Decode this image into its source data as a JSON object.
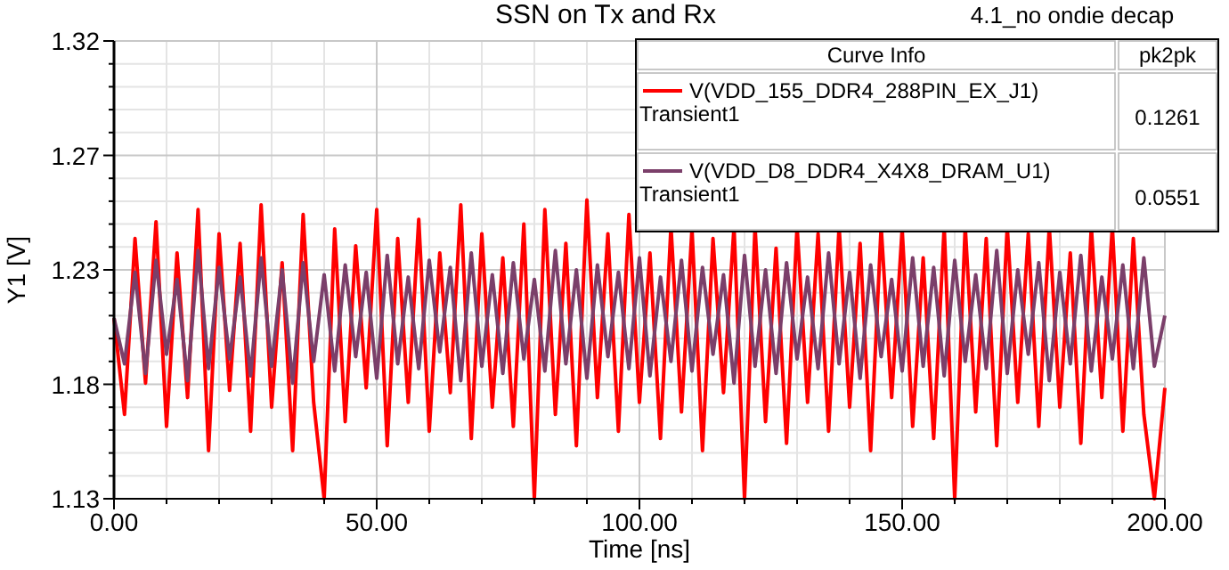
{
  "chart_data": {
    "type": "line",
    "title": "SSN on Tx and Rx",
    "xlabel": "Time [ns]",
    "ylabel": "Y1 [V]",
    "annotations": [
      "4.1_no ondie decap",
      "Curve Info",
      "pk2pk",
      "0.1261",
      "0.0551"
    ],
    "x": [
      0,
      2,
      4,
      6,
      8,
      10,
      12,
      14,
      16,
      18,
      20,
      22,
      24,
      26,
      28,
      30,
      32,
      34,
      36,
      38,
      40,
      42,
      44,
      46,
      48,
      50,
      52,
      54,
      56,
      58,
      60,
      62,
      64,
      66,
      68,
      70,
      72,
      74,
      76,
      78,
      80,
      82,
      84,
      86,
      88,
      90,
      92,
      94,
      96,
      98,
      100,
      102,
      104,
      106,
      108,
      110,
      112,
      114,
      116,
      118,
      120,
      122,
      124,
      126,
      128,
      130,
      132,
      134,
      136,
      138,
      140,
      142,
      144,
      146,
      148,
      150,
      152,
      154,
      156,
      158,
      160,
      162,
      164,
      166,
      168,
      170,
      172,
      174,
      176,
      178,
      180,
      182,
      184,
      186,
      188,
      190,
      192,
      194,
      196,
      198,
      200
    ],
    "series": [
      {
        "name": "V(VDD_155_DDR4_288PIN_EX_J1) Transient1",
        "color": "#ff0000",
        "values": [
          1.205,
          1.165,
          1.238,
          1.178,
          1.245,
          1.16,
          1.232,
          1.172,
          1.25,
          1.15,
          1.24,
          1.175,
          1.236,
          1.158,
          1.252,
          1.168,
          1.228,
          1.15,
          1.248,
          1.17,
          1.13,
          1.242,
          1.162,
          1.235,
          1.176,
          1.25,
          1.152,
          1.238,
          1.17,
          1.246,
          1.158,
          1.232,
          1.174,
          1.252,
          1.155,
          1.24,
          1.168,
          1.23,
          1.16,
          1.244,
          1.13,
          1.25,
          1.165,
          1.236,
          1.152,
          1.254,
          1.172,
          1.24,
          1.158,
          1.248,
          1.17,
          1.232,
          1.155,
          1.243,
          1.166,
          1.242,
          1.15,
          1.238,
          1.174,
          1.243,
          1.13,
          1.243,
          1.162,
          1.234,
          1.153,
          1.243,
          1.17,
          1.24,
          1.158,
          1.243,
          1.168,
          1.236,
          1.15,
          1.243,
          1.172,
          1.242,
          1.16,
          1.23,
          1.155,
          1.243,
          1.13,
          1.243,
          1.166,
          1.238,
          1.152,
          1.243,
          1.17,
          1.24,
          1.16,
          1.243,
          1.168,
          1.232,
          1.153,
          1.243,
          1.172,
          1.243,
          1.158,
          1.238,
          1.165,
          1.13,
          1.176
        ]
      },
      {
        "name": "V(VDD_D8_DDR4_X4X8_DRAM_U1) Transient1",
        "color": "#7b3f6a",
        "values": [
          1.205,
          1.186,
          1.224,
          1.182,
          1.229,
          1.19,
          1.221,
          1.179,
          1.233,
          1.184,
          1.226,
          1.188,
          1.222,
          1.181,
          1.23,
          1.185,
          1.225,
          1.178,
          1.228,
          1.187,
          1.223,
          1.183,
          1.227,
          1.189,
          1.224,
          1.18,
          1.231,
          1.186,
          1.222,
          1.184,
          1.229,
          1.191,
          1.226,
          1.179,
          1.232,
          1.185,
          1.223,
          1.182,
          1.228,
          1.188,
          1.221,
          1.183,
          1.233,
          1.186,
          1.225,
          1.18,
          1.227,
          1.189,
          1.224,
          1.184,
          1.23,
          1.181,
          1.222,
          1.187,
          1.229,
          1.183,
          1.226,
          1.19,
          1.223,
          1.178,
          1.231,
          1.185,
          1.225,
          1.182,
          1.228,
          1.188,
          1.222,
          1.184,
          1.232,
          1.186,
          1.224,
          1.18,
          1.227,
          1.189,
          1.221,
          1.183,
          1.23,
          1.185,
          1.226,
          1.181,
          1.229,
          1.187,
          1.223,
          1.184,
          1.233,
          1.182,
          1.225,
          1.19,
          1.228,
          1.179,
          1.224,
          1.186,
          1.231,
          1.183,
          1.222,
          1.188,
          1.227,
          1.184,
          1.23,
          1.185,
          1.206
        ]
      }
    ],
    "xlim": [
      0,
      200
    ],
    "xticks": [
      {
        "value": 0,
        "label": "0.00"
      },
      {
        "value": 50,
        "label": "50.00"
      },
      {
        "value": 100,
        "label": "100.00"
      },
      {
        "value": 150,
        "label": "150.00"
      },
      {
        "value": 200,
        "label": "200.00"
      }
    ],
    "ylim": [
      1.13,
      1.32
    ],
    "yticks": [
      {
        "value": 1.13,
        "label": "1.13"
      },
      {
        "value": 1.1775,
        "label": "1.18"
      },
      {
        "value": 1.225,
        "label": "1.23"
      },
      {
        "value": 1.2725,
        "label": "1.27"
      },
      {
        "value": 1.32,
        "label": "1.32"
      }
    ],
    "grid": true,
    "legend": "top right",
    "line_style": "solid"
  }
}
